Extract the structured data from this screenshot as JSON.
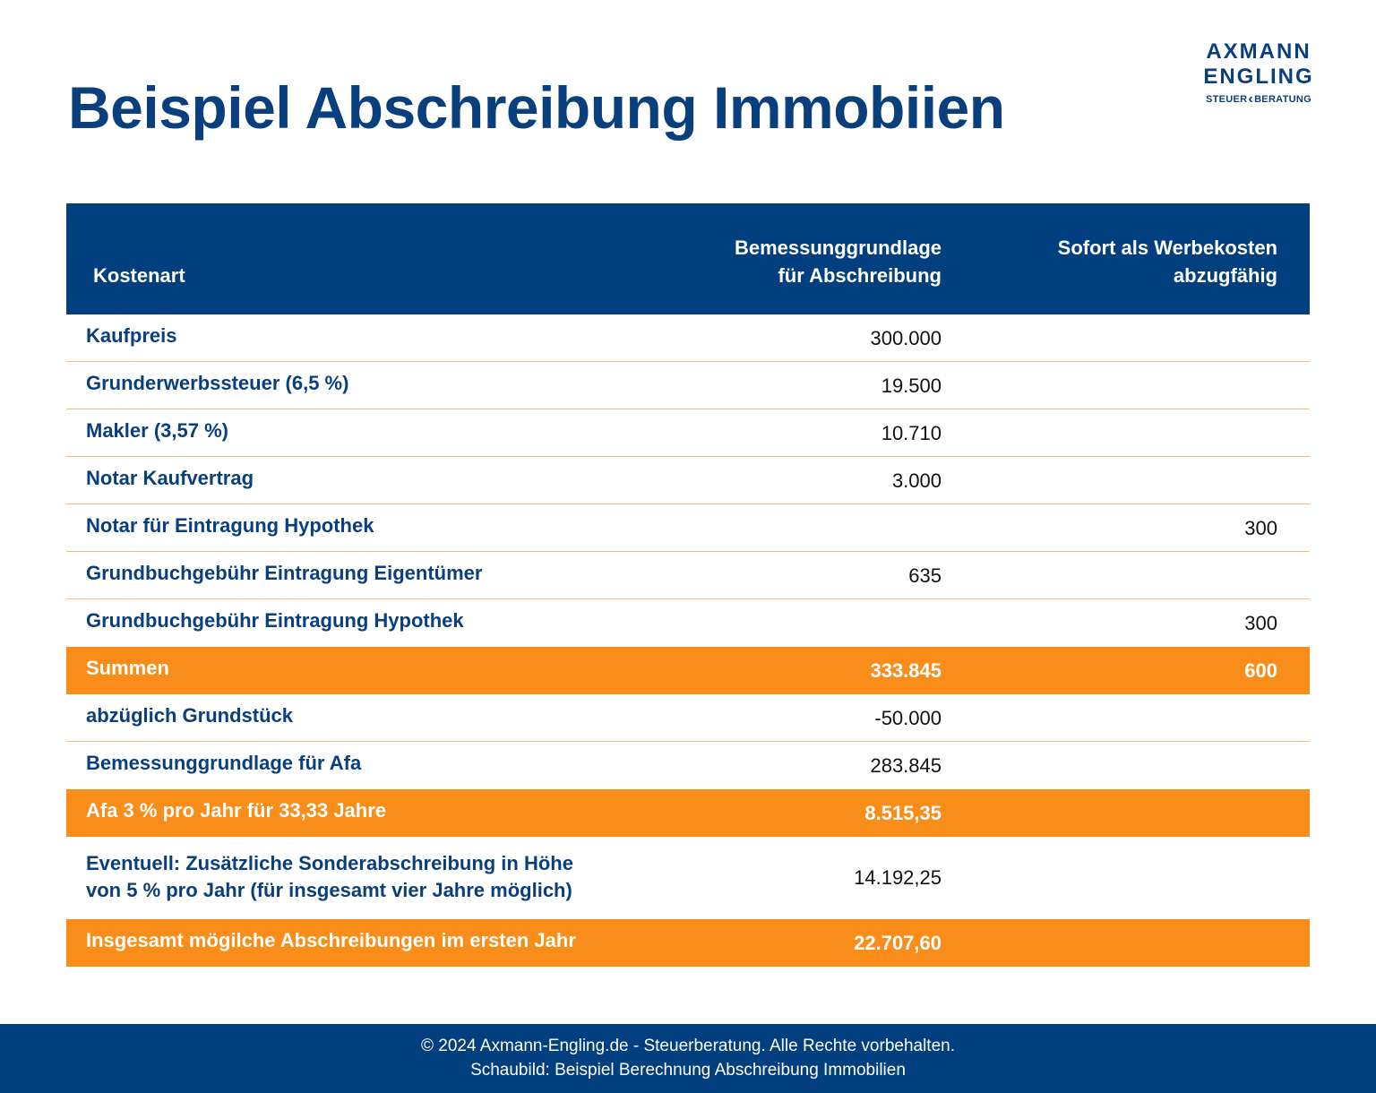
{
  "title": "Beispiel Abschreibung Immobiien",
  "logo": {
    "line1": "AXMANN",
    "line2": "ENGLING",
    "line3_left": "STEUER",
    "line3_right": "BERATUNG"
  },
  "table": {
    "headers": {
      "kostenart": "Kostenart",
      "bemessung_line1": "Bemessunggrundlage",
      "bemessung_line2": "für Abschreibung",
      "sofort_line1": "Sofort als Werbekosten",
      "sofort_line2": "abzugfähig"
    },
    "rows": [
      {
        "label": "Kaufpreis",
        "basis": "300.000",
        "sofort": ""
      },
      {
        "label": "Grunderwerbssteuer (6,5 %)",
        "basis": "19.500",
        "sofort": ""
      },
      {
        "label": "Makler (3,57 %)",
        "basis": "10.710",
        "sofort": ""
      },
      {
        "label": "Notar Kaufvertrag",
        "basis": "3.000",
        "sofort": ""
      },
      {
        "label": "Notar für Eintragung Hypothek",
        "basis": "",
        "sofort": "300"
      },
      {
        "label": "Grundbuchgebühr Eintragung Eigentümer",
        "basis": "635",
        "sofort": ""
      },
      {
        "label": "Grundbuchgebühr Eintragung Hypothek",
        "basis": "",
        "sofort": "300"
      },
      {
        "label": "Summen",
        "basis": "333.845",
        "sofort": "600"
      },
      {
        "label": "abzüglich Grundstück",
        "basis": "-50.000",
        "sofort": ""
      },
      {
        "label": "Bemessunggrundlage für Afa",
        "basis": "283.845",
        "sofort": ""
      },
      {
        "label": "Afa 3 % pro Jahr für 33,33 Jahre",
        "basis": "8.515,35",
        "sofort": ""
      },
      {
        "label_line1": "Eventuell: Zusätzliche Sonderabschreibung in Höhe",
        "label_line2": "von 5 % pro Jahr (für insgesamt vier Jahre möglich)",
        "basis": "14.192,25",
        "sofort": ""
      },
      {
        "label": "Insgesamt mögilche Abschreibungen im ersten Jahr",
        "basis": "22.707,60",
        "sofort": ""
      }
    ]
  },
  "footer": {
    "line1": "© 2024 Axmann-Engling.de - Steuerberatung. Alle Rechte vorbehalten.",
    "line2": "Schaubild: Beispiel Berechnung Abschreibung Immobilien"
  },
  "colors": {
    "navy": "#023f7f",
    "orange": "#f98d19",
    "divider": "#f7b77a"
  }
}
